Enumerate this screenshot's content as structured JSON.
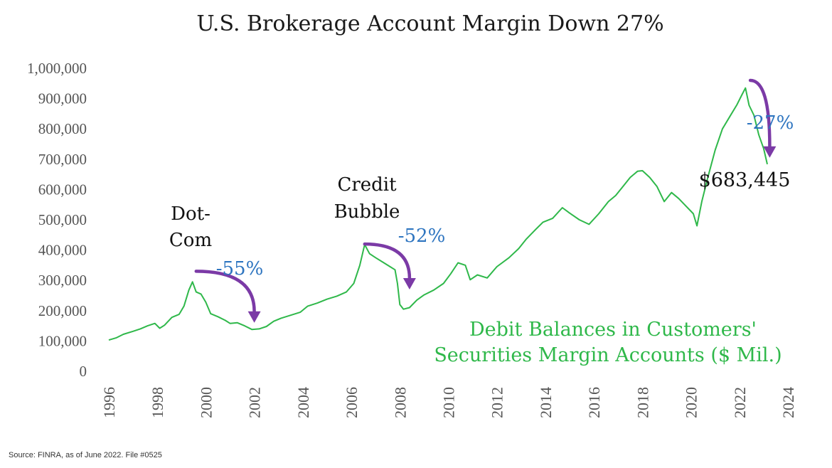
{
  "chart_data": {
    "type": "line",
    "title": "U.S. Brokerage Account Margin Down 27%",
    "xlabel": "",
    "ylabel": "",
    "xlim": [
      1996,
      2024
    ],
    "ylim": [
      0,
      1000000
    ],
    "x_ticks": [
      "1996",
      "1998",
      "2000",
      "2002",
      "2004",
      "2006",
      "2008",
      "2010",
      "2012",
      "2014",
      "2016",
      "2018",
      "2020",
      "2022",
      "2024"
    ],
    "y_ticks": [
      "0",
      "100,000",
      "200,000",
      "300,000",
      "400,000",
      "500,000",
      "600,000",
      "700,000",
      "800,000",
      "900,000",
      "1,000,000"
    ],
    "series": [
      {
        "name": "Debit Balances in Customers' Securities Margin Accounts ($ Mil.)",
        "color": "#2fb84a",
        "points": [
          [
            1996.0,
            103000
          ],
          [
            1996.3,
            110000
          ],
          [
            1996.6,
            122000
          ],
          [
            1997.0,
            132000
          ],
          [
            1997.3,
            140000
          ],
          [
            1997.6,
            150000
          ],
          [
            1997.9,
            158000
          ],
          [
            1998.1,
            142000
          ],
          [
            1998.3,
            152000
          ],
          [
            1998.6,
            178000
          ],
          [
            1998.9,
            188000
          ],
          [
            1999.1,
            215000
          ],
          [
            1999.3,
            268000
          ],
          [
            1999.45,
            295000
          ],
          [
            1999.6,
            262000
          ],
          [
            1999.8,
            255000
          ],
          [
            2000.0,
            228000
          ],
          [
            2000.2,
            190000
          ],
          [
            2000.5,
            180000
          ],
          [
            2000.8,
            168000
          ],
          [
            2001.0,
            158000
          ],
          [
            2001.3,
            160000
          ],
          [
            2001.6,
            150000
          ],
          [
            2001.9,
            138000
          ],
          [
            2002.2,
            140000
          ],
          [
            2002.5,
            148000
          ],
          [
            2002.8,
            165000
          ],
          [
            2003.1,
            175000
          ],
          [
            2003.5,
            185000
          ],
          [
            2003.9,
            195000
          ],
          [
            2004.2,
            215000
          ],
          [
            2004.6,
            225000
          ],
          [
            2005.0,
            238000
          ],
          [
            2005.4,
            248000
          ],
          [
            2005.8,
            262000
          ],
          [
            2006.1,
            290000
          ],
          [
            2006.35,
            350000
          ],
          [
            2006.55,
            418000
          ],
          [
            2006.75,
            388000
          ],
          [
            2007.0,
            375000
          ],
          [
            2007.3,
            360000
          ],
          [
            2007.6,
            345000
          ],
          [
            2007.8,
            335000
          ],
          [
            2007.9,
            290000
          ],
          [
            2008.0,
            220000
          ],
          [
            2008.15,
            205000
          ],
          [
            2008.4,
            210000
          ],
          [
            2008.7,
            235000
          ],
          [
            2009.0,
            252000
          ],
          [
            2009.4,
            268000
          ],
          [
            2009.8,
            290000
          ],
          [
            2010.1,
            322000
          ],
          [
            2010.4,
            358000
          ],
          [
            2010.7,
            350000
          ],
          [
            2010.9,
            302000
          ],
          [
            2011.2,
            318000
          ],
          [
            2011.6,
            308000
          ],
          [
            2012.0,
            345000
          ],
          [
            2012.5,
            375000
          ],
          [
            2012.9,
            405000
          ],
          [
            2013.2,
            435000
          ],
          [
            2013.6,
            468000
          ],
          [
            2013.9,
            492000
          ],
          [
            2014.3,
            505000
          ],
          [
            2014.7,
            540000
          ],
          [
            2015.0,
            522000
          ],
          [
            2015.4,
            500000
          ],
          [
            2015.8,
            485000
          ],
          [
            2016.2,
            520000
          ],
          [
            2016.6,
            560000
          ],
          [
            2016.9,
            580000
          ],
          [
            2017.2,
            610000
          ],
          [
            2017.5,
            640000
          ],
          [
            2017.8,
            660000
          ],
          [
            2018.0,
            662000
          ],
          [
            2018.3,
            640000
          ],
          [
            2018.6,
            610000
          ],
          [
            2018.9,
            560000
          ],
          [
            2019.2,
            590000
          ],
          [
            2019.5,
            570000
          ],
          [
            2019.8,
            545000
          ],
          [
            2020.1,
            520000
          ],
          [
            2020.25,
            480000
          ],
          [
            2020.45,
            560000
          ],
          [
            2020.7,
            640000
          ],
          [
            2021.0,
            730000
          ],
          [
            2021.3,
            800000
          ],
          [
            2021.6,
            840000
          ],
          [
            2021.9,
            880000
          ],
          [
            2022.1,
            912000
          ],
          [
            2022.25,
            935000
          ],
          [
            2022.4,
            878000
          ],
          [
            2022.6,
            845000
          ],
          [
            2022.8,
            780000
          ],
          [
            2023.0,
            735000
          ],
          [
            2023.15,
            683445
          ]
        ]
      }
    ],
    "legend": {
      "line1": "Debit Balances in Customers'",
      "line2": "Securities Margin Accounts ($ Mil.)",
      "placement": "bottom-right"
    },
    "annotations": {
      "dotcom_line1": "Dot-",
      "dotcom_line2": "Com",
      "dotcom_change": "-55%",
      "credit_line1": "Credit",
      "credit_line2": "Bubble",
      "credit_change": "-52%",
      "current_change": "-27%",
      "current_value": "$683,445",
      "arrow_color": "#7b3aa6",
      "arrows": [
        {
          "from": [
            1999.6,
            330000
          ],
          "to": [
            2002.0,
            160000
          ]
        },
        {
          "from": [
            2006.55,
            420000
          ],
          "to": [
            2008.4,
            270000
          ]
        },
        {
          "from": [
            2022.45,
            960000
          ],
          "to": [
            2023.25,
            705000
          ]
        }
      ]
    },
    "source": "Source: FINRA, as of June 2022. File #0525"
  }
}
